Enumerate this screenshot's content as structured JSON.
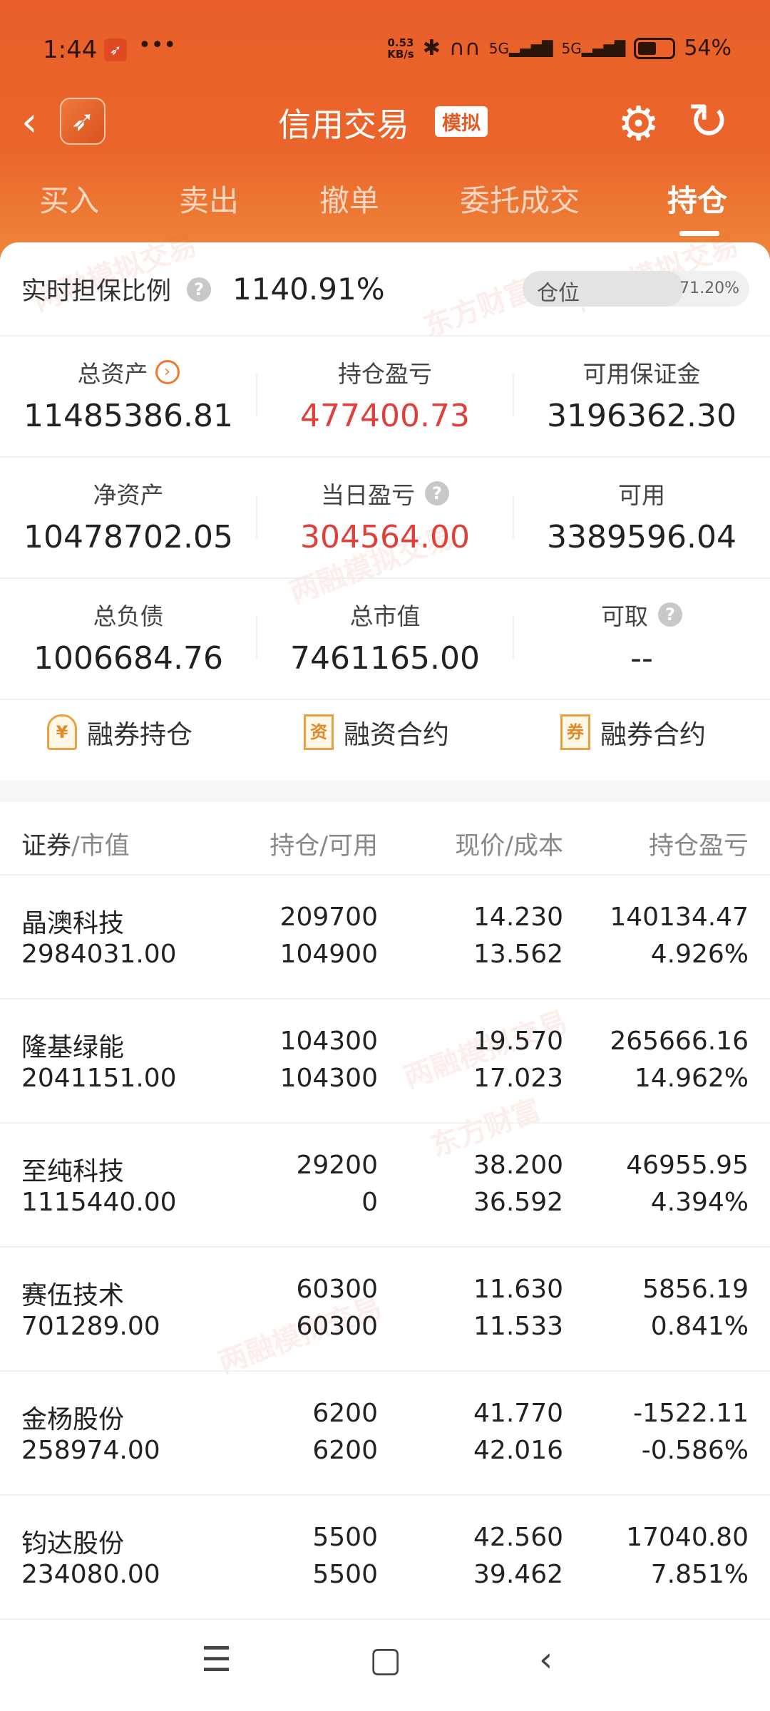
{
  "status": {
    "time": "1:44",
    "speed": "0.53",
    "speed_unit": "KB/s",
    "network": "5G",
    "battery": "54%",
    "battery_level": 0.54
  },
  "header": {
    "title": "信用交易",
    "badge": "模拟"
  },
  "tabs": [
    {
      "label": "买入"
    },
    {
      "label": "卖出"
    },
    {
      "label": "撤单"
    },
    {
      "label": "委托成交"
    },
    {
      "label": "持仓",
      "active": true
    }
  ],
  "ratio": {
    "label": "实时担保比例",
    "value": "1140.91%",
    "position_label": "仓位",
    "position_pct": "71.20%",
    "position_fraction": 0.712
  },
  "summary": [
    {
      "label": "总资产",
      "value": "11485386.81"
    },
    {
      "label": "持仓盈亏",
      "value": "477400.73"
    },
    {
      "label": "可用保证金",
      "value": "3196362.30"
    },
    {
      "label": "净资产",
      "value": "10478702.05"
    },
    {
      "label": "当日盈亏",
      "value": "304564.00"
    },
    {
      "label": "可用",
      "value": "3389596.04"
    },
    {
      "label": "总负债",
      "value": "1006684.76"
    },
    {
      "label": "总市值",
      "value": "7461165.00"
    },
    {
      "label": "可取",
      "value": "--"
    }
  ],
  "shortcuts": [
    {
      "label": "融券持仓",
      "icon": "¥"
    },
    {
      "label": "融资合约",
      "icon": "资"
    },
    {
      "label": "融券合约",
      "icon": "券"
    }
  ],
  "table": {
    "headers": {
      "name_a": "证券",
      "name_b": "/市值",
      "hold": "持仓/可用",
      "price": "现价/成本",
      "pnl": "持仓盈亏"
    },
    "rows": [
      {
        "name": "晶澳科技",
        "mv": "2984031.00",
        "hold": "209700",
        "avail": "104900",
        "price": "14.230",
        "cost": "13.562",
        "pnl": "140134.47",
        "pct": "4.926%",
        "up": true
      },
      {
        "name": "隆基绿能",
        "mv": "2041151.00",
        "hold": "104300",
        "avail": "104300",
        "price": "19.570",
        "cost": "17.023",
        "pnl": "265666.16",
        "pct": "14.962%",
        "up": true
      },
      {
        "name": "至纯科技",
        "mv": "1115440.00",
        "hold": "29200",
        "avail": "0",
        "price": "38.200",
        "cost": "36.592",
        "pnl": "46955.95",
        "pct": "4.394%",
        "up": true
      },
      {
        "name": "赛伍技术",
        "mv": "701289.00",
        "hold": "60300",
        "avail": "60300",
        "price": "11.630",
        "cost": "11.533",
        "pnl": "5856.19",
        "pct": "0.841%",
        "up": true
      },
      {
        "name": "金杨股份",
        "mv": "258974.00",
        "hold": "6200",
        "avail": "6200",
        "price": "41.770",
        "cost": "42.016",
        "pnl": "-1522.11",
        "pct": "-0.586%",
        "up": false
      },
      {
        "name": "钧达股份",
        "mv": "234080.00",
        "hold": "5500",
        "avail": "5500",
        "price": "42.560",
        "cost": "39.462",
        "pnl": "17040.80",
        "pct": "7.851%",
        "up": true
      }
    ]
  },
  "watermarks": [
    "两融模拟交易",
    "东方财富"
  ],
  "colors": {
    "brand": "#e9602a",
    "up": "#d8403a",
    "down": "#3a9a3a"
  }
}
